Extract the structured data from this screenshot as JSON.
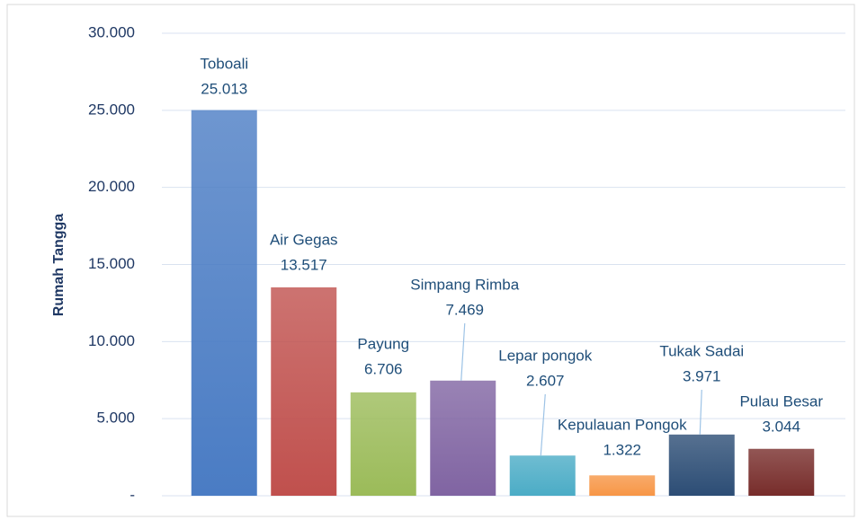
{
  "chart_data": {
    "type": "bar",
    "ylabel": "Rumah Tangga",
    "categories": [
      "Toboali",
      "Air Gegas",
      "Payung",
      "Simpang Rimba",
      "Lepar pongok",
      "Kepulauan Pongok",
      "Tukak Sadai",
      "Pulau Besar"
    ],
    "values": [
      25013,
      13517,
      6706,
      7469,
      2607,
      1322,
      3971,
      3044
    ],
    "value_labels": [
      "25.013",
      "13.517",
      "6.706",
      "7.469",
      "2.607",
      "1.322",
      "3.971",
      "3.044"
    ],
    "colors": [
      "#4a7cc4",
      "#c0504d",
      "#9bbb59",
      "#8064a2",
      "#4bacc6",
      "#f79646",
      "#2c4d75",
      "#772c2a"
    ],
    "ylim": [
      0,
      30000
    ],
    "yticks": [
      {
        "value": 0,
        "label": "-"
      },
      {
        "value": 5000,
        "label": "5.000"
      },
      {
        "value": 10000,
        "label": "10.000"
      },
      {
        "value": 15000,
        "label": "15.000"
      },
      {
        "value": 20000,
        "label": "20.000"
      },
      {
        "value": 25000,
        "label": "25.000"
      },
      {
        "value": 30000,
        "label": "30.000"
      }
    ],
    "grid": true
  }
}
